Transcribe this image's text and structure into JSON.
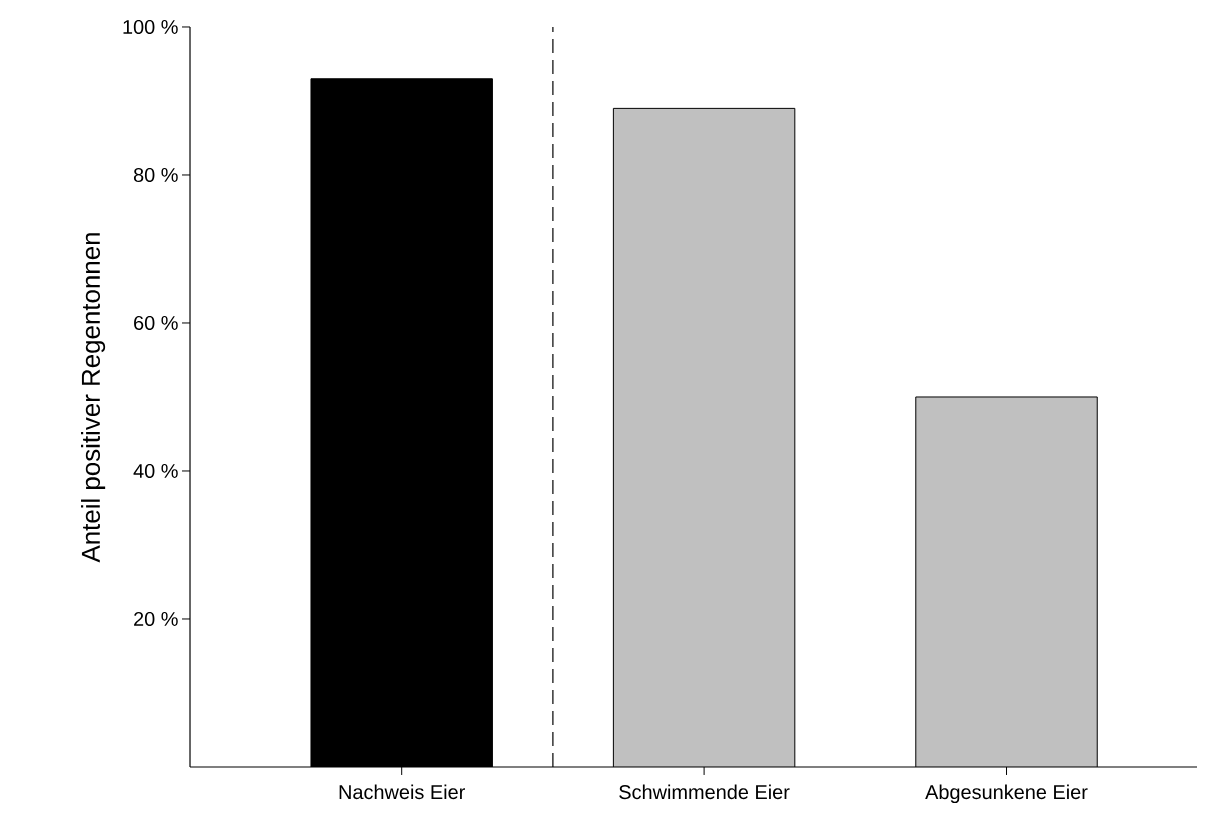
{
  "chart_data": {
    "type": "bar",
    "ylabel": "Anteil positiver Regentonnen",
    "categories": [
      "Nachweis Eier",
      "Schwimmende Eier",
      "Abgesunkene Eier"
    ],
    "values": [
      93,
      89,
      50
    ],
    "colors": [
      "#000000",
      "#c0c0c0",
      "#c0c0c0"
    ],
    "ylim": [
      0,
      100
    ],
    "yticks": [
      {
        "value": 20,
        "label": "20 %"
      },
      {
        "value": 40,
        "label": "40 %"
      },
      {
        "value": 60,
        "label": "60 %"
      },
      {
        "value": 80,
        "label": "80 %"
      },
      {
        "value": 100,
        "label": "100 %"
      }
    ],
    "grid": false
  }
}
